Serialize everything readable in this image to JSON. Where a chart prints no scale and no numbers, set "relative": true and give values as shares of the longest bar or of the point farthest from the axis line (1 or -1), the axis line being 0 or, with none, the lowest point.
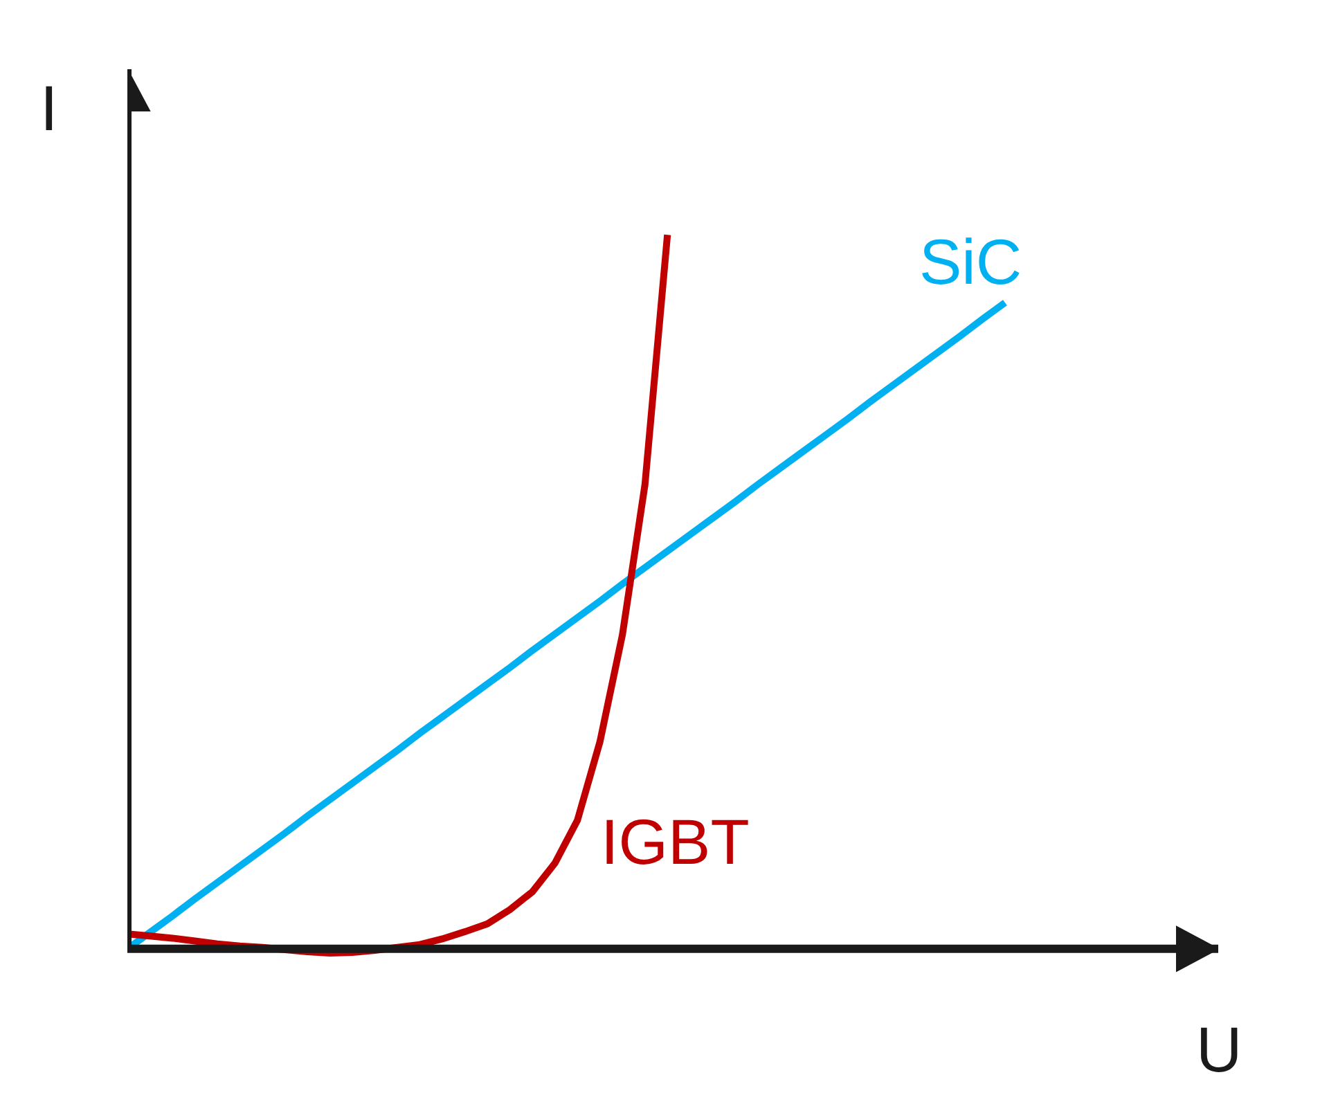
{
  "chart_data": {
    "type": "line",
    "relative": true,
    "xlabel": "U",
    "ylabel": "I",
    "legend": false,
    "marker": "none",
    "line_style": "solid",
    "categories": [
      null,
      null,
      null,
      null,
      null,
      null,
      null,
      null,
      null,
      null,
      null,
      null,
      null,
      null,
      null,
      null,
      null,
      null,
      null,
      null,
      null,
      null,
      null,
      null,
      null,
      null,
      null,
      null,
      null,
      null,
      null,
      null,
      null,
      null,
      null,
      null,
      null,
      null,
      null,
      null
    ],
    "series": [
      {
        "name": "SiC",
        "color": "#00b0f0",
        "values": [
          0,
          0.023,
          0.046,
          0.07,
          0.093,
          0.116,
          0.139,
          0.162,
          0.186,
          0.209,
          0.232,
          0.255,
          0.278,
          0.302,
          0.325,
          0.348,
          0.371,
          0.394,
          0.418,
          0.441,
          0.464,
          0.487,
          0.511,
          0.534,
          0.557,
          0.58,
          0.603,
          0.626,
          0.65,
          0.673,
          0.696,
          0.719,
          0.742,
          0.766,
          0.789,
          0.812,
          0.835,
          0.858,
          0.882,
          0.905
        ]
      },
      {
        "name": "IGBT",
        "color": "#c00000",
        "values": [
          0.021,
          0.018,
          0.015,
          0.011,
          0.007,
          0.004,
          0.002,
          -0.001,
          -0.004,
          -0.006,
          -0.005,
          -0.002,
          0.002,
          0.006,
          0.014,
          0.024,
          0.035,
          0.055,
          0.08,
          0.12,
          0.18,
          0.29,
          0.44,
          0.65,
          1.0,
          null,
          null,
          null,
          null,
          null,
          null,
          null,
          null,
          null,
          null,
          null,
          null,
          null,
          null,
          null
        ]
      }
    ]
  }
}
